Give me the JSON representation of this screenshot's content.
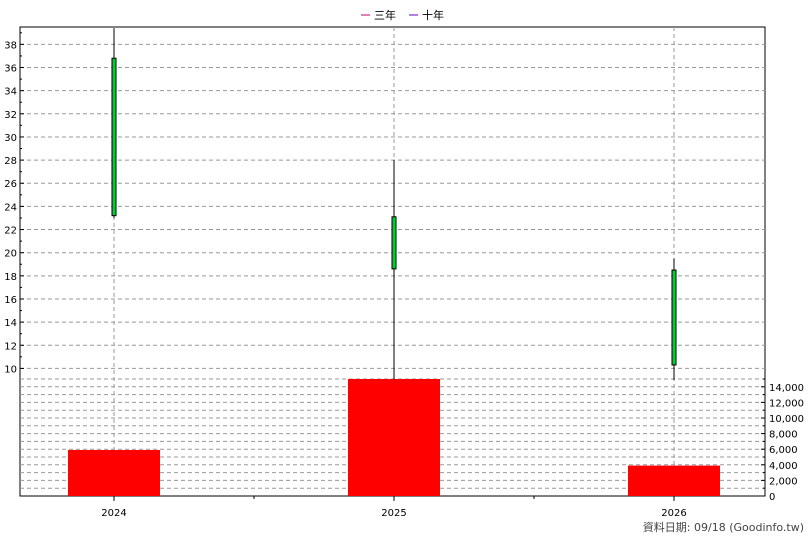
{
  "chart_data": {
    "type": "candlestick",
    "legend": {
      "placement": "top-center",
      "items": [
        {
          "label": "三年",
          "color": "#cc0066"
        },
        {
          "label": "十年",
          "color": "#6600cc"
        }
      ]
    },
    "categories": [
      "2024",
      "2025",
      "2026"
    ],
    "price": {
      "ylim": [
        9,
        39.5
      ],
      "ticks": [
        10,
        12,
        14,
        16,
        18,
        20,
        22,
        24,
        26,
        28,
        30,
        32,
        34,
        36,
        38
      ],
      "candles": [
        {
          "open": 23.2,
          "close": 36.8,
          "low": 23.0,
          "high": 39.4
        },
        {
          "open": 18.6,
          "close": 23.1,
          "low": 9.0,
          "high": 28.0
        },
        {
          "open": 10.3,
          "close": 18.5,
          "low": 9.0,
          "high": 19.5
        }
      ],
      "candle_color": "#00cc33"
    },
    "volume": {
      "ylim": [
        0,
        15000
      ],
      "ticks": [
        "0",
        "2,000",
        "4,000",
        "6,000",
        "8,000",
        "10,000",
        "12,000",
        "14,000"
      ],
      "tick_values": [
        0,
        2000,
        4000,
        6000,
        8000,
        10000,
        12000,
        14000
      ],
      "values": [
        5900,
        15000,
        3900
      ],
      "bar_color": "#ff0000"
    },
    "grid": true
  },
  "footer": {
    "text": "資料日期: 09/18  (Goodinfo.tw)"
  }
}
